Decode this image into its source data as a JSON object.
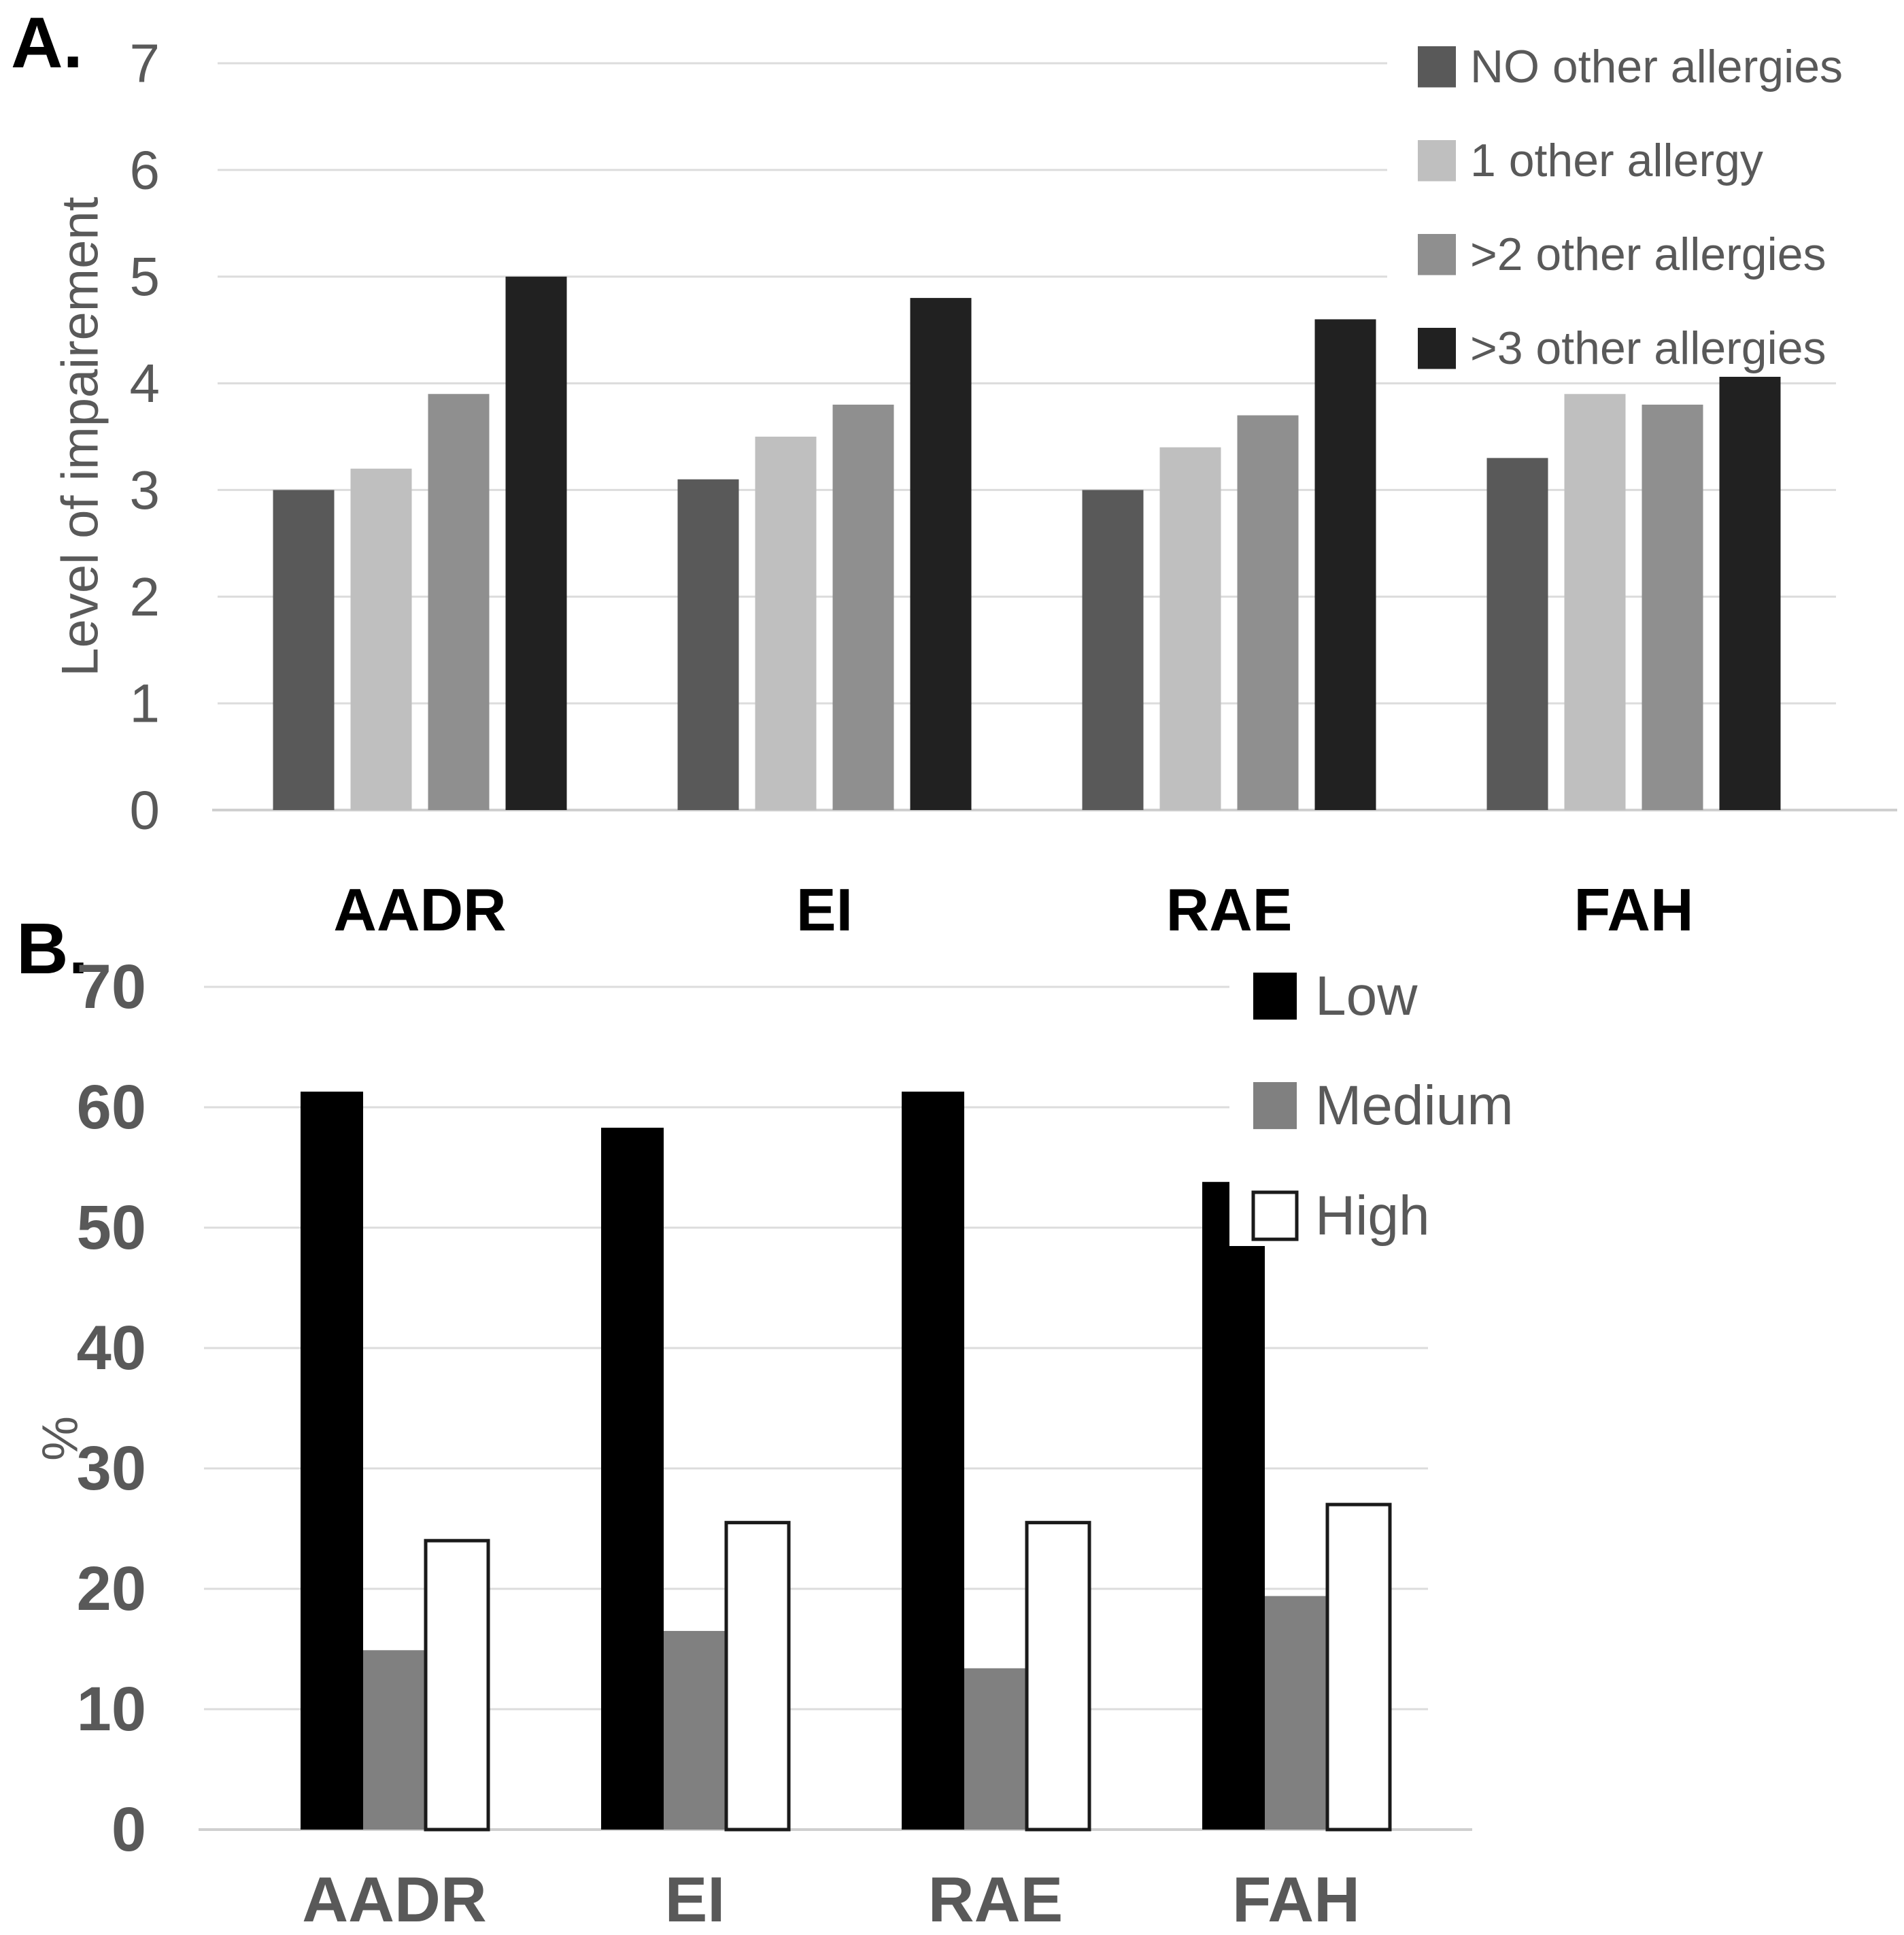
{
  "figure": {
    "background": "#ffffff",
    "grid_color": "#dcdcdc",
    "axis_color": "#cfcfcf",
    "text_color": "#595959"
  },
  "chart_data": [
    {
      "type": "bar",
      "panel": "A.",
      "title": "",
      "xlabel": "",
      "ylabel": "Level of impairement",
      "categories": [
        "AADR",
        "EI",
        "RAE",
        "FAH"
      ],
      "series": [
        {
          "name": "NO other allergies",
          "color": "#595959",
          "values": [
            3.0,
            3.1,
            3.0,
            3.3
          ]
        },
        {
          "name": "1 other allergy",
          "color": "#bfbfbf",
          "values": [
            3.2,
            3.5,
            3.4,
            3.9
          ]
        },
        {
          "name": ">2 other allergies",
          "color": "#8f8f8f",
          "values": [
            3.9,
            3.8,
            3.7,
            3.8
          ]
        },
        {
          "name": ">3 other allergies",
          "color": "#212121",
          "values": [
            5.0,
            4.8,
            4.6,
            4.7
          ]
        }
      ],
      "ylim": [
        0,
        7
      ],
      "ytick_step": 1,
      "ytick_labels": [
        "0",
        "1",
        "2",
        "3",
        "4",
        "5",
        "6",
        "7"
      ],
      "grid": true,
      "legend_position": "top-right",
      "category_label_color": "#000000"
    },
    {
      "type": "bar",
      "panel": "B.",
      "title": "",
      "xlabel": "",
      "ylabel": "%",
      "categories": [
        "AADR",
        "EI",
        "RAE",
        "FAH"
      ],
      "series": [
        {
          "name": "Low",
          "color": "#000000",
          "values": [
            61.3,
            58.3,
            61.3,
            53.8
          ]
        },
        {
          "name": "Medium",
          "color": "#808080",
          "values": [
            14.9,
            16.5,
            13.4,
            19.4
          ]
        },
        {
          "name": "High",
          "color": "#ffffff",
          "border": "#1a1a1a",
          "values": [
            24.0,
            25.5,
            25.5,
            27.0
          ]
        }
      ],
      "ylim": [
        0,
        70
      ],
      "ytick_step": 10,
      "ytick_labels": [
        "0",
        "10",
        "20",
        "30",
        "40",
        "50",
        "60",
        "70"
      ],
      "grid": true,
      "legend_position": "top-right",
      "category_label_color": "#595959"
    }
  ]
}
